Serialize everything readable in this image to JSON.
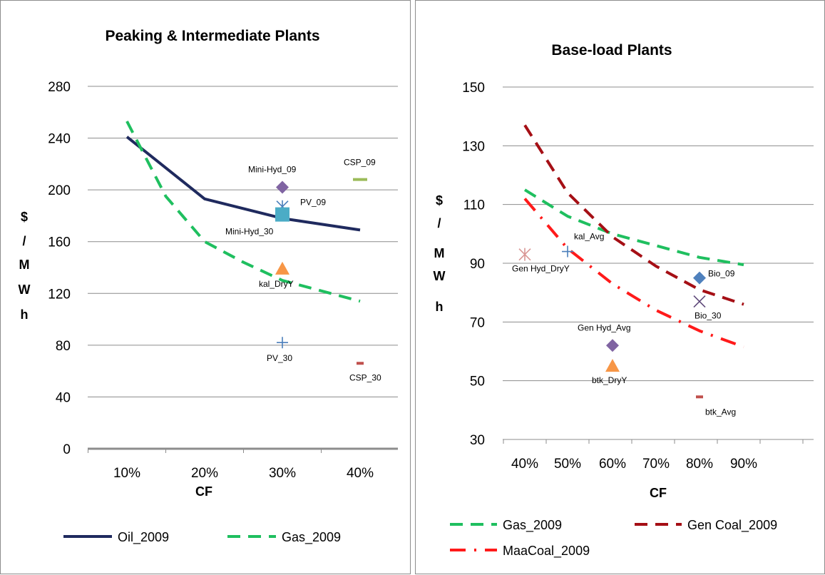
{
  "charts": [
    {
      "title": "Peaking & Intermediate Plants",
      "xlabel": "CF",
      "ylabel": "$ / M W h",
      "categories": [
        "10%",
        "20%",
        "30%",
        "40%"
      ],
      "y_ticks": [
        "0",
        "40",
        "80",
        "120",
        "160",
        "200",
        "240",
        "280"
      ]
    },
    {
      "title": "Base-load Plants",
      "xlabel": "CF",
      "ylabel": "$ / M W h",
      "categories": [
        "40%",
        "50%",
        "60%",
        "70%",
        "80%",
        "90%"
      ],
      "y_ticks": [
        "30",
        "50",
        "70",
        "90",
        "110",
        "130",
        "150"
      ]
    }
  ],
  "chart_data": [
    {
      "type": "line",
      "title": "Peaking & Intermediate Plants",
      "xlabel": "CF",
      "ylabel": "$ / M W h",
      "ylim": [
        0,
        280
      ],
      "y_ticks": [
        0,
        40,
        80,
        120,
        160,
        200,
        240,
        280
      ],
      "categories": [
        "10%",
        "20%",
        "30%",
        "40%"
      ],
      "grid": true,
      "legend_position": "bottom",
      "series": [
        {
          "name": "Oil_2009",
          "color": "#1f2a5e",
          "style": "solid",
          "x": [
            0.1,
            0.2,
            0.3,
            0.4
          ],
          "y": [
            241,
            193,
            178,
            169
          ]
        },
        {
          "name": "Gas_2009",
          "color": "#1fbf5f",
          "style": "dashed",
          "x": [
            0.1,
            0.15,
            0.2,
            0.25,
            0.3,
            0.35,
            0.4
          ],
          "y": [
            253,
            195,
            160,
            144,
            130,
            122,
            114
          ]
        }
      ],
      "points": [
        {
          "label": "Mini-Hyd_09",
          "x": 0.3,
          "y": 202,
          "marker": "diamond",
          "color": "#8064a2"
        },
        {
          "label": "PV_09",
          "x": 0.3,
          "y": 187,
          "marker": "asterisk",
          "color": "#4a7ebb"
        },
        {
          "label": "Mini-Hyd_30",
          "x": 0.3,
          "y": 181,
          "marker": "square",
          "color": "#4bacc6"
        },
        {
          "label": "kal_DryY",
          "x": 0.3,
          "y": 139,
          "marker": "triangle",
          "color": "#f79646"
        },
        {
          "label": "PV_30",
          "x": 0.3,
          "y": 82,
          "marker": "plus",
          "color": "#4a7ebb"
        },
        {
          "label": "CSP_09",
          "x": 0.4,
          "y": 208,
          "marker": "dash",
          "color": "#9bbb59"
        },
        {
          "label": "CSP_30",
          "x": 0.4,
          "y": 66,
          "marker": "dash",
          "color": "#c0504d"
        }
      ]
    },
    {
      "type": "line",
      "title": "Base-load Plants",
      "xlabel": "CF",
      "ylabel": "$ / M W h",
      "ylim": [
        30,
        150
      ],
      "y_ticks": [
        30,
        50,
        70,
        90,
        110,
        130,
        150
      ],
      "categories": [
        "40%",
        "50%",
        "60%",
        "70%",
        "80%",
        "90%"
      ],
      "grid": true,
      "legend_position": "bottom",
      "series": [
        {
          "name": "Gas_2009",
          "color": "#1fbf5f",
          "style": "dashed",
          "x": [
            0.4,
            0.5,
            0.6,
            0.7,
            0.8,
            0.9
          ],
          "y": [
            115,
            106,
            100,
            96,
            92,
            89.5
          ]
        },
        {
          "name": "Gen Coal_2009",
          "color": "#a50f15",
          "style": "dashed",
          "x": [
            0.4,
            0.5,
            0.6,
            0.7,
            0.8,
            0.9
          ],
          "y": [
            137,
            114,
            99,
            89,
            81,
            76
          ]
        },
        {
          "name": "MaaCoal_2009",
          "color": "#ff1a1a",
          "style": "dashdot",
          "x": [
            0.4,
            0.5,
            0.6,
            0.7,
            0.8,
            0.9
          ],
          "y": [
            112,
            95,
            83,
            74,
            67,
            61.5
          ]
        }
      ],
      "points": [
        {
          "label": "Gen Hyd_DryY",
          "x": 0.4,
          "y": 93,
          "marker": "asterisk",
          "color": "#d99694"
        },
        {
          "label": "kal_Avg",
          "x": 0.5,
          "y": 94,
          "marker": "plus",
          "color": "#4a7ebb"
        },
        {
          "label": "Gen Hyd_Avg",
          "x": 0.6,
          "y": 62,
          "marker": "diamond",
          "color": "#8064a2"
        },
        {
          "label": "btk_DryY",
          "x": 0.6,
          "y": 55,
          "marker": "triangle",
          "color": "#f79646"
        },
        {
          "label": "Bio_09",
          "x": 0.8,
          "y": 85,
          "marker": "diamond",
          "color": "#4f81bd"
        },
        {
          "label": "Bio_30",
          "x": 0.8,
          "y": 77,
          "marker": "x",
          "color": "#604a7b"
        },
        {
          "label": "btk_Avg",
          "x": 0.8,
          "y": 44.5,
          "marker": "dash",
          "color": "#c0504d"
        }
      ]
    }
  ]
}
